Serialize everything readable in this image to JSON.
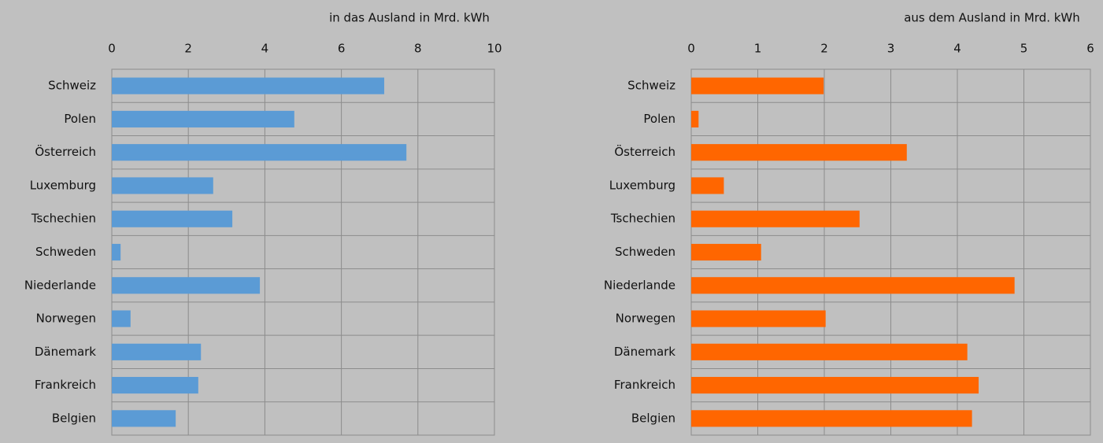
{
  "chart_data": [
    {
      "type": "bar",
      "orientation": "horizontal",
      "x_label": "in das Ausland in Mrd. kWh",
      "categories": [
        "Schweiz",
        "Polen",
        "Österreich",
        "Luxemburg",
        "Tschechien",
        "Schweden",
        "Niederlande",
        "Norwegen",
        "Dänemark",
        "Frankreich",
        "Belgien"
      ],
      "values": [
        7.12,
        4.77,
        7.7,
        2.65,
        3.15,
        0.23,
        3.87,
        0.49,
        2.33,
        2.26,
        1.67
      ],
      "color": "#5b9bd5",
      "xlim": [
        0,
        10
      ],
      "xticks": [
        0,
        2,
        4,
        6,
        8,
        10
      ],
      "grid": true
    },
    {
      "type": "bar",
      "orientation": "horizontal",
      "x_label": "aus dem Ausland in Mrd. kWh",
      "categories": [
        "Schweiz",
        "Polen",
        "Österreich",
        "Luxemburg",
        "Tschechien",
        "Schweden",
        "Niederlande",
        "Norwegen",
        "Dänemark",
        "Frankreich",
        "Belgien"
      ],
      "values": [
        1.99,
        0.11,
        3.24,
        0.49,
        2.53,
        1.05,
        4.86,
        2.02,
        4.15,
        4.32,
        4.22
      ],
      "color": "#ff6600",
      "xlim": [
        0,
        6
      ],
      "xticks": [
        0,
        1,
        2,
        3,
        4,
        5,
        6
      ],
      "grid": true
    }
  ]
}
